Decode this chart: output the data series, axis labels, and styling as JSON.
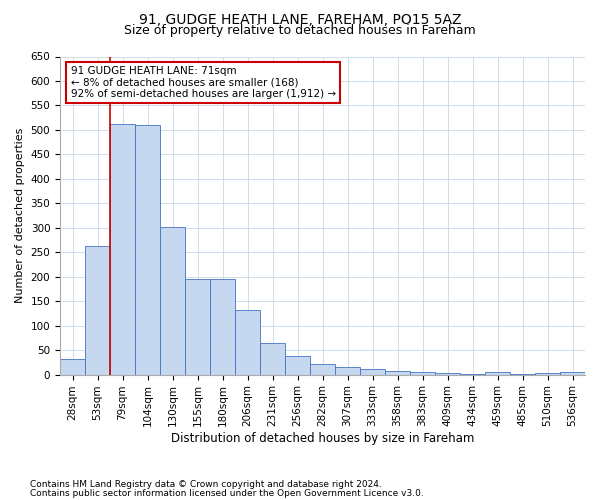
{
  "title1": "91, GUDGE HEATH LANE, FAREHAM, PO15 5AZ",
  "title2": "Size of property relative to detached houses in Fareham",
  "xlabel": "Distribution of detached houses by size in Fareham",
  "ylabel": "Number of detached properties",
  "footnote1": "Contains HM Land Registry data © Crown copyright and database right 2024.",
  "footnote2": "Contains public sector information licensed under the Open Government Licence v3.0.",
  "categories": [
    "28sqm",
    "53sqm",
    "79sqm",
    "104sqm",
    "130sqm",
    "155sqm",
    "180sqm",
    "206sqm",
    "231sqm",
    "256sqm",
    "282sqm",
    "307sqm",
    "333sqm",
    "358sqm",
    "383sqm",
    "409sqm",
    "434sqm",
    "459sqm",
    "485sqm",
    "510sqm",
    "536sqm"
  ],
  "values": [
    31,
    263,
    512,
    510,
    301,
    196,
    196,
    131,
    65,
    38,
    22,
    15,
    11,
    7,
    5,
    4,
    1,
    5,
    1,
    4,
    5
  ],
  "bar_color": "#c5d8ef",
  "bar_edge_color": "#4472c4",
  "grid_color": "#c8d8e8",
  "annotation_text_line1": "91 GUDGE HEATH LANE: 71sqm",
  "annotation_text_line2": "← 8% of detached houses are smaller (168)",
  "annotation_text_line3": "92% of semi-detached houses are larger (1,912) →",
  "annotation_box_color": "#ffffff",
  "annotation_box_edge": "#cc0000",
  "vline_color": "#cc0000",
  "ylim": [
    0,
    650
  ],
  "yticks": [
    0,
    50,
    100,
    150,
    200,
    250,
    300,
    350,
    400,
    450,
    500,
    550,
    600,
    650
  ],
  "background_color": "#ffffff",
  "title1_fontsize": 10,
  "title2_fontsize": 9,
  "xlabel_fontsize": 8.5,
  "ylabel_fontsize": 8,
  "tick_fontsize": 7.5,
  "annotation_fontsize": 7.5,
  "footnote_fontsize": 6.5
}
